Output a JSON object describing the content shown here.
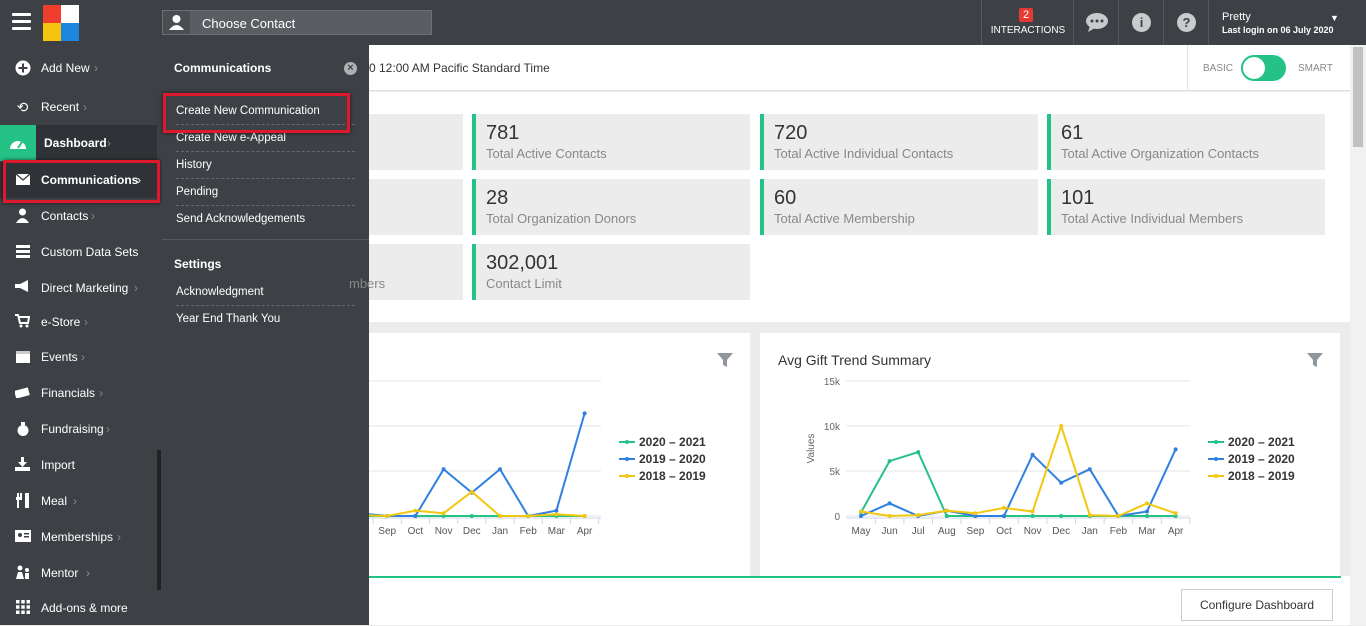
{
  "topbar": {
    "contact_placeholder": "Choose Contact",
    "interactions_count": "2",
    "interactions_label": "INTERACTIONS",
    "user_name": "Pretty",
    "last_login": "Last login on 06 July 2020"
  },
  "sidebar": {
    "items": [
      {
        "label": "Add New",
        "icon": "plus-circle-icon"
      },
      {
        "label": "Recent",
        "icon": "history-icon"
      },
      {
        "label": "Dashboard",
        "icon": "dashboard-icon"
      },
      {
        "label": "Communications",
        "icon": "envelope-icon"
      },
      {
        "label": "Contacts",
        "icon": "person-icon"
      },
      {
        "label": "Custom Data Sets",
        "icon": "database-icon"
      },
      {
        "label": "Direct Marketing",
        "icon": "megaphone-icon"
      },
      {
        "label": "e-Store",
        "icon": "cart-icon"
      },
      {
        "label": "Events",
        "icon": "calendar-icon"
      },
      {
        "label": "Financials",
        "icon": "money-icon"
      },
      {
        "label": "Fundraising",
        "icon": "moneybag-icon"
      },
      {
        "label": "Import",
        "icon": "import-icon"
      },
      {
        "label": "Meal",
        "icon": "fork-knife-icon"
      },
      {
        "label": "Memberships",
        "icon": "id-card-icon"
      },
      {
        "label": "Mentor",
        "icon": "mentor-icon"
      },
      {
        "label": "Add-ons & more",
        "icon": "grid-icon"
      }
    ]
  },
  "flyout": {
    "title": "Communications",
    "items": [
      "Create New Communication",
      "Create New e-Appeal",
      "History",
      "Pending",
      "Send Acknowledgements"
    ],
    "settings_title": "Settings",
    "settings_items": [
      "Acknowledgment",
      "Year End Thank You"
    ]
  },
  "timebar": {
    "text": "0 12:00 AM Pacific Standard Time",
    "basic": "BASIC",
    "smart": "SMART",
    "toggle_on": true
  },
  "stats": [
    {
      "value": "781",
      "label": "Total Active Contacts"
    },
    {
      "value": "720",
      "label": "Total Active Individual Contacts"
    },
    {
      "value": "61",
      "label": "Total Active Organization Contacts"
    },
    {
      "value": "28",
      "label": "Total Organization Donors"
    },
    {
      "value": "60",
      "label": "Total Active Membership"
    },
    {
      "value": "101",
      "label": "Total Active Individual Members"
    },
    {
      "value": "302,001",
      "label": "Contact Limit"
    }
  ],
  "stats_partial_label": "mbers",
  "configure_button": "Configure Dashboard",
  "colors": {
    "accent": "#25c286",
    "topbar": "#3d4145",
    "highlight": "#e0182d"
  },
  "chart_data": [
    {
      "type": "line",
      "title": "",
      "x": [
        "g",
        "Sep",
        "Oct",
        "Nov",
        "Dec",
        "Jan",
        "Feb",
        "Mar",
        "Apr"
      ],
      "series": [
        {
          "name": "2020 – 2021",
          "color": "#25c286",
          "values": [
            0,
            0,
            0,
            0,
            0,
            0,
            0,
            0,
            0
          ]
        },
        {
          "name": "2019 – 2020",
          "color": "#2f80e0",
          "values": [
            300,
            0,
            0,
            5200,
            2600,
            5200,
            0,
            600,
            11400
          ]
        },
        {
          "name": "2018 – 2019",
          "color": "#f2c80f",
          "values": [
            100,
            0,
            600,
            300,
            2700,
            0,
            0,
            200,
            0
          ]
        }
      ]
    },
    {
      "type": "line",
      "title": "Avg Gift Trend Summary",
      "ylabel": "Values",
      "ylim": [
        0,
        15000
      ],
      "yticks": [
        "0",
        "5k",
        "10k",
        "15k"
      ],
      "x": [
        "May",
        "Jun",
        "Jul",
        "Aug",
        "Sep",
        "Oct",
        "Nov",
        "Dec",
        "Jan",
        "Feb",
        "Mar",
        "Apr"
      ],
      "series": [
        {
          "name": "2020 – 2021",
          "color": "#25c286",
          "values": [
            400,
            6100,
            7100,
            0,
            0,
            0,
            0,
            0,
            0,
            0,
            0,
            0
          ]
        },
        {
          "name": "2019 – 2020",
          "color": "#2f80e0",
          "values": [
            0,
            1400,
            0,
            600,
            0,
            0,
            6800,
            3700,
            5200,
            0,
            500,
            7400
          ]
        },
        {
          "name": "2018 – 2019",
          "color": "#f2c80f",
          "values": [
            500,
            0,
            100,
            600,
            300,
            900,
            500,
            10000,
            100,
            0,
            1400,
            300
          ]
        }
      ]
    }
  ]
}
